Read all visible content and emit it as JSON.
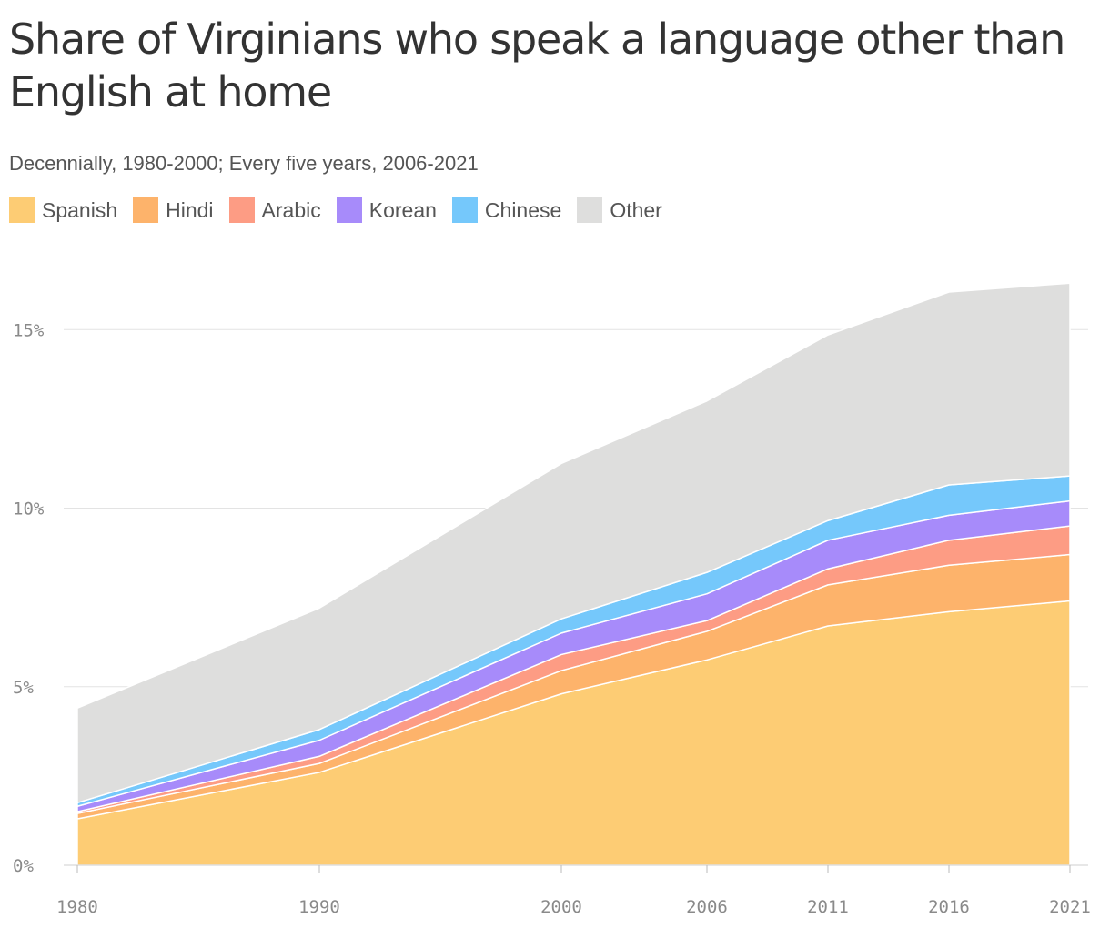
{
  "chart_data": {
    "type": "area",
    "stacked": true,
    "title": "Share of Virginians who speak a language other than English at home",
    "subtitle": "Decennially, 1980-2000; Every five years, 2006-2021",
    "x": [
      1980,
      1990,
      2000,
      2006,
      2011,
      2016,
      2021
    ],
    "x_tick_labels": [
      "1980",
      "1990",
      "2000",
      "2006",
      "2011",
      "2016",
      "2021"
    ],
    "y_ticks": [
      0,
      5,
      10,
      15
    ],
    "y_tick_labels": [
      "0%",
      "5%",
      "10%",
      "15%"
    ],
    "ylim": [
      0,
      16.3
    ],
    "unit": "%",
    "grid": true,
    "legend_position": "top-left",
    "series": [
      {
        "name": "Spanish",
        "color": "#fdcc74",
        "values": [
          1.3,
          2.6,
          4.8,
          5.75,
          6.7,
          7.1,
          7.4
        ]
      },
      {
        "name": "Hindi",
        "color": "#fdb36b",
        "values": [
          0.15,
          0.25,
          0.65,
          0.8,
          1.15,
          1.3,
          1.3
        ]
      },
      {
        "name": "Arabic",
        "color": "#fd9c84",
        "values": [
          0.05,
          0.2,
          0.45,
          0.3,
          0.45,
          0.7,
          0.8
        ]
      },
      {
        "name": "Korean",
        "color": "#a78bfa",
        "values": [
          0.15,
          0.45,
          0.6,
          0.75,
          0.8,
          0.7,
          0.7
        ]
      },
      {
        "name": "Chinese",
        "color": "#75c8fb",
        "values": [
          0.1,
          0.3,
          0.4,
          0.6,
          0.55,
          0.85,
          0.7
        ]
      },
      {
        "name": "Other",
        "color": "#dededd",
        "values": [
          2.65,
          3.4,
          4.35,
          4.8,
          5.2,
          5.4,
          5.4
        ]
      }
    ]
  }
}
